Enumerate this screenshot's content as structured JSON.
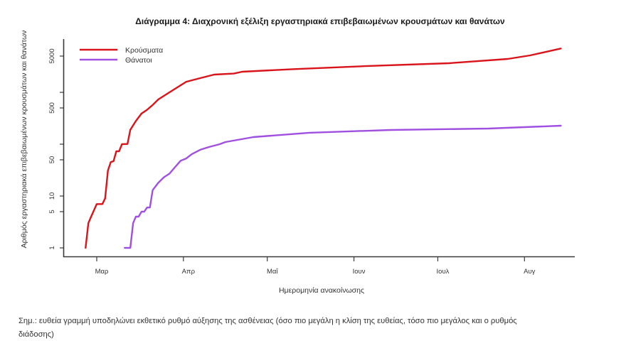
{
  "chart_data": {
    "type": "line",
    "title": "Διάγραμμα 4: Διαχρονική εξέλιξη εργαστηριακά επιβεβαιωμένων κρουσμάτων και θανάτων",
    "xlabel": "Ημερομηνία ανακοίνωσης",
    "ylabel": "Αριθμός εργαστηριακά επιβεβαιωμένων κρουσμάτων και θανάτων",
    "yscale": "log",
    "ylim": [
      1,
      7000
    ],
    "grid": false,
    "legend_position": "top-left",
    "x_ticks": [
      {
        "date": "03-01",
        "label": "Μαρ"
      },
      {
        "date": "04-01",
        "label": "Απρ"
      },
      {
        "date": "05-01",
        "label": "Μαΐ"
      },
      {
        "date": "06-01",
        "label": "Ιουν"
      },
      {
        "date": "07-01",
        "label": "Ιουλ"
      },
      {
        "date": "08-01",
        "label": "Αυγ"
      }
    ],
    "y_ticks": [
      {
        "value": 1,
        "label": "1"
      },
      {
        "value": 5,
        "label": "5"
      },
      {
        "value": 10,
        "label": "10"
      },
      {
        "value": 50,
        "label": "50"
      },
      {
        "value": 100,
        "label": ""
      },
      {
        "value": 500,
        "label": "500"
      },
      {
        "value": 1000,
        "label": ""
      },
      {
        "value": 5000,
        "label": "5000"
      }
    ],
    "series": [
      {
        "name": "Κρούσματα",
        "color": "#d9141b",
        "x": [
          "02-26",
          "02-27",
          "02-28",
          "03-01",
          "03-03",
          "03-04",
          "03-05",
          "03-06",
          "03-07",
          "03-08",
          "03-09",
          "03-10",
          "03-12",
          "03-13",
          "03-15",
          "03-17",
          "03-19",
          "03-21",
          "03-23",
          "03-27",
          "04-02",
          "04-07",
          "04-12",
          "04-19",
          "04-22",
          "05-10",
          "06-05",
          "07-05",
          "07-26",
          "08-03",
          "08-14"
        ],
        "values": [
          1,
          3,
          4,
          7,
          7,
          9,
          31,
          45,
          47,
          73,
          73,
          100,
          101,
          190,
          280,
          390,
          460,
          570,
          730,
          1000,
          1600,
          1880,
          2200,
          2300,
          2500,
          2800,
          3200,
          3650,
          4400,
          5150,
          7000
        ]
      },
      {
        "name": "Θάνατοι",
        "color": "#a050e0",
        "x": [
          "03-11",
          "03-13",
          "03-14",
          "03-15",
          "03-16",
          "03-17",
          "03-18",
          "03-19",
          "03-20",
          "03-21",
          "03-23",
          "03-25",
          "03-27",
          "03-29",
          "03-31",
          "04-02",
          "04-04",
          "04-07",
          "04-10",
          "04-14",
          "04-16",
          "04-26",
          "05-16",
          "06-14",
          "07-19",
          "08-14"
        ],
        "values": [
          1,
          1,
          3,
          4,
          4,
          5,
          5,
          6,
          6,
          13,
          18,
          23,
          27,
          36,
          48,
          53,
          64,
          78,
          88,
          100,
          110,
          137,
          166,
          188,
          200,
          227
        ]
      }
    ]
  },
  "legend": {
    "items": [
      {
        "label": "Κρούσματα",
        "color": "#d9141b"
      },
      {
        "label": "Θάνατοι",
        "color": "#a050e0"
      }
    ]
  },
  "note": {
    "lines": [
      "Σημ.: ευθεία γραμμή υποδηλώνει εκθετικό ρυθμό αύξησης της ασθένειας (όσο πιο μεγάλη η κλίση της ευθείας, τόσο πιο μεγάλος και ο ρυθμός",
      "διάδοσης)"
    ]
  }
}
